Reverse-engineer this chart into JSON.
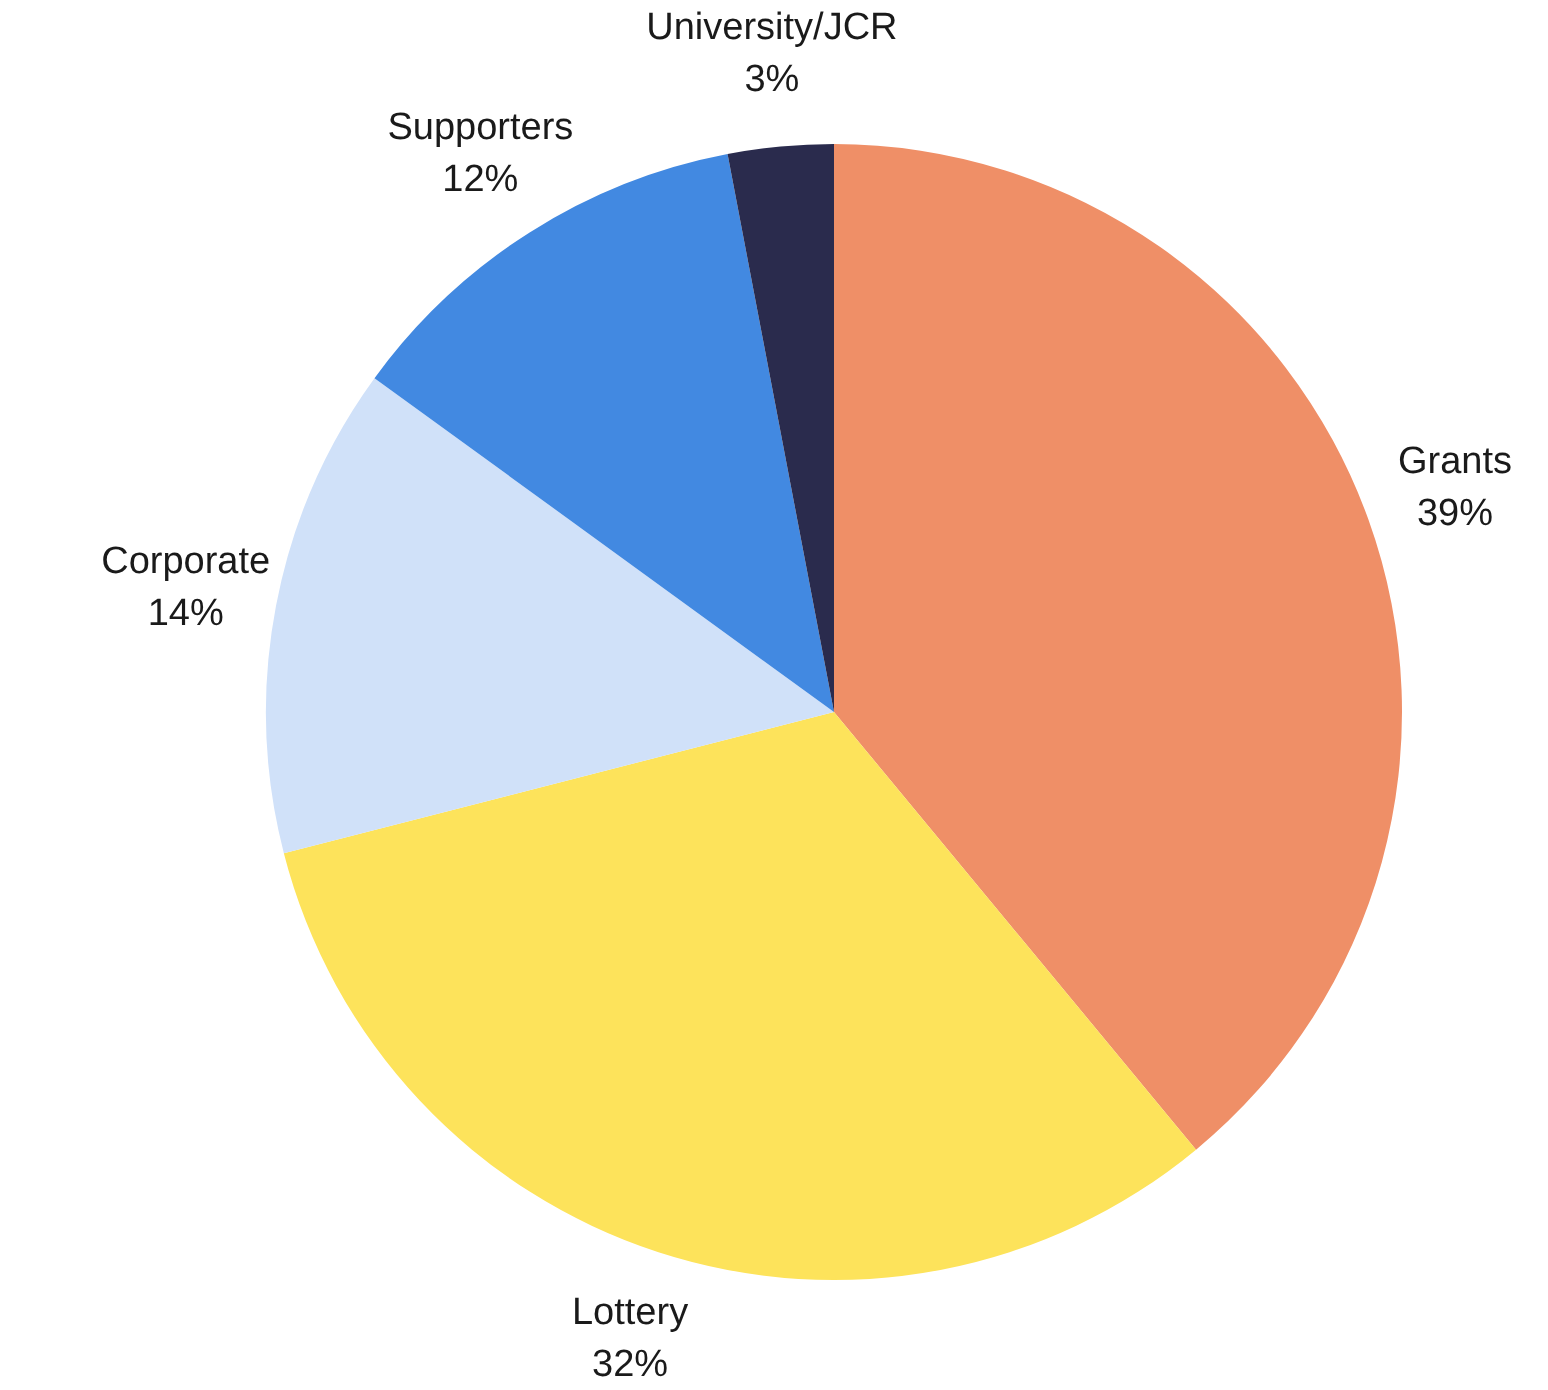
{
  "chart_data": {
    "type": "pie",
    "categories": [
      "Grants",
      "Lottery",
      "Corporate",
      "Supporters",
      "University/JCR"
    ],
    "values": [
      39,
      32,
      14,
      12,
      3
    ],
    "colors": [
      "#ef8f67",
      "#fde35b",
      "#d0e1f9",
      "#4289e1",
      "#2a2b4d"
    ],
    "value_labels": [
      "39%",
      "32%",
      "14%",
      "12%",
      "3%"
    ],
    "legend": false
  }
}
